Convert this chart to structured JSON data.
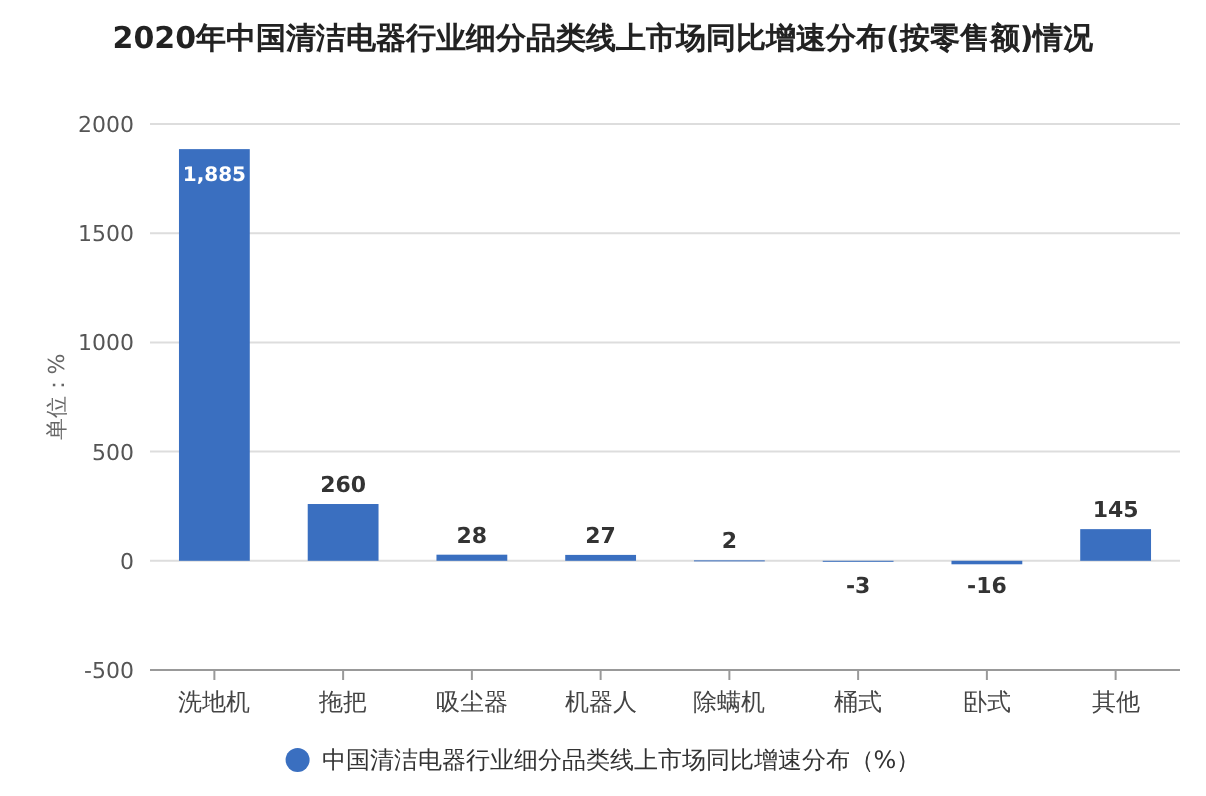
{
  "chart_data": {
    "type": "bar",
    "title": "2020年中国清洁电器行业细分品类线上市场同比增速分布(按零售额)情况",
    "ylabel": "单位：%",
    "categories": [
      "洗地机",
      "拖把",
      "吸尘器",
      "机器人",
      "除螨机",
      "桶式",
      "卧式",
      "其他"
    ],
    "series": [
      {
        "name": "中国清洁电器行业细分品类线上市场同比增速分布（%）",
        "color": "#3a6fc0",
        "values": [
          1885,
          260,
          28,
          27,
          2,
          -3,
          -16,
          145
        ],
        "value_labels": [
          "1,885",
          "260",
          "28",
          "27",
          "2",
          "-3",
          "-16",
          "145"
        ]
      }
    ],
    "ylim": [
      -500,
      2000
    ],
    "yticks": [
      -500,
      0,
      500,
      1000,
      1500,
      2000
    ],
    "grid": "y",
    "legend": "bottom"
  }
}
